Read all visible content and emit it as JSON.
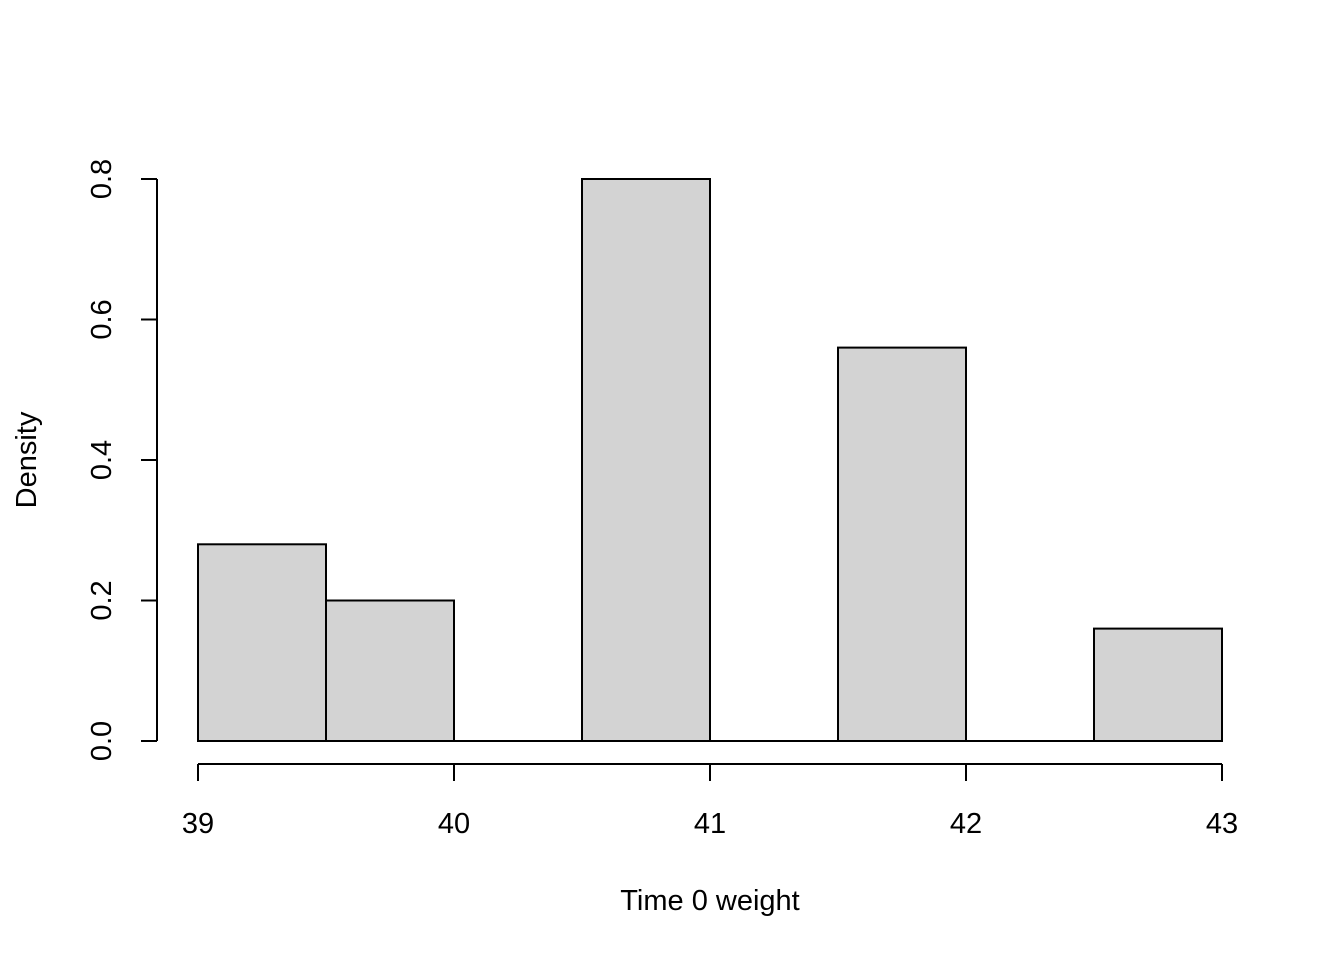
{
  "chart_data": {
    "type": "bar",
    "subtype": "histogram",
    "title": "",
    "xlabel": "Time 0 weight",
    "ylabel": "Density",
    "bins": [
      {
        "start": 39.0,
        "end": 39.5,
        "density": 0.28
      },
      {
        "start": 39.5,
        "end": 40.0,
        "density": 0.2
      },
      {
        "start": 40.0,
        "end": 40.5,
        "density": 0.0
      },
      {
        "start": 40.5,
        "end": 41.0,
        "density": 0.8
      },
      {
        "start": 41.0,
        "end": 41.5,
        "density": 0.0
      },
      {
        "start": 41.5,
        "end": 42.0,
        "density": 0.56
      },
      {
        "start": 42.0,
        "end": 42.5,
        "density": 0.0
      },
      {
        "start": 42.5,
        "end": 43.0,
        "density": 0.16
      }
    ],
    "xlim": [
      39,
      43
    ],
    "ylim": [
      0,
      0.8
    ],
    "x_ticks": [
      39,
      40,
      41,
      42,
      43
    ],
    "x_tick_labels": [
      "39",
      "40",
      "41",
      "42",
      "43"
    ],
    "y_ticks": [
      0.0,
      0.2,
      0.4,
      0.6,
      0.8
    ],
    "y_tick_labels": [
      "0.0",
      "0.2",
      "0.4",
      "0.6",
      "0.8"
    ],
    "grid": false,
    "legend": "none",
    "colors": {
      "bar_fill": "#d3d3d3",
      "bar_stroke": "#000000",
      "axis": "#000000"
    }
  }
}
